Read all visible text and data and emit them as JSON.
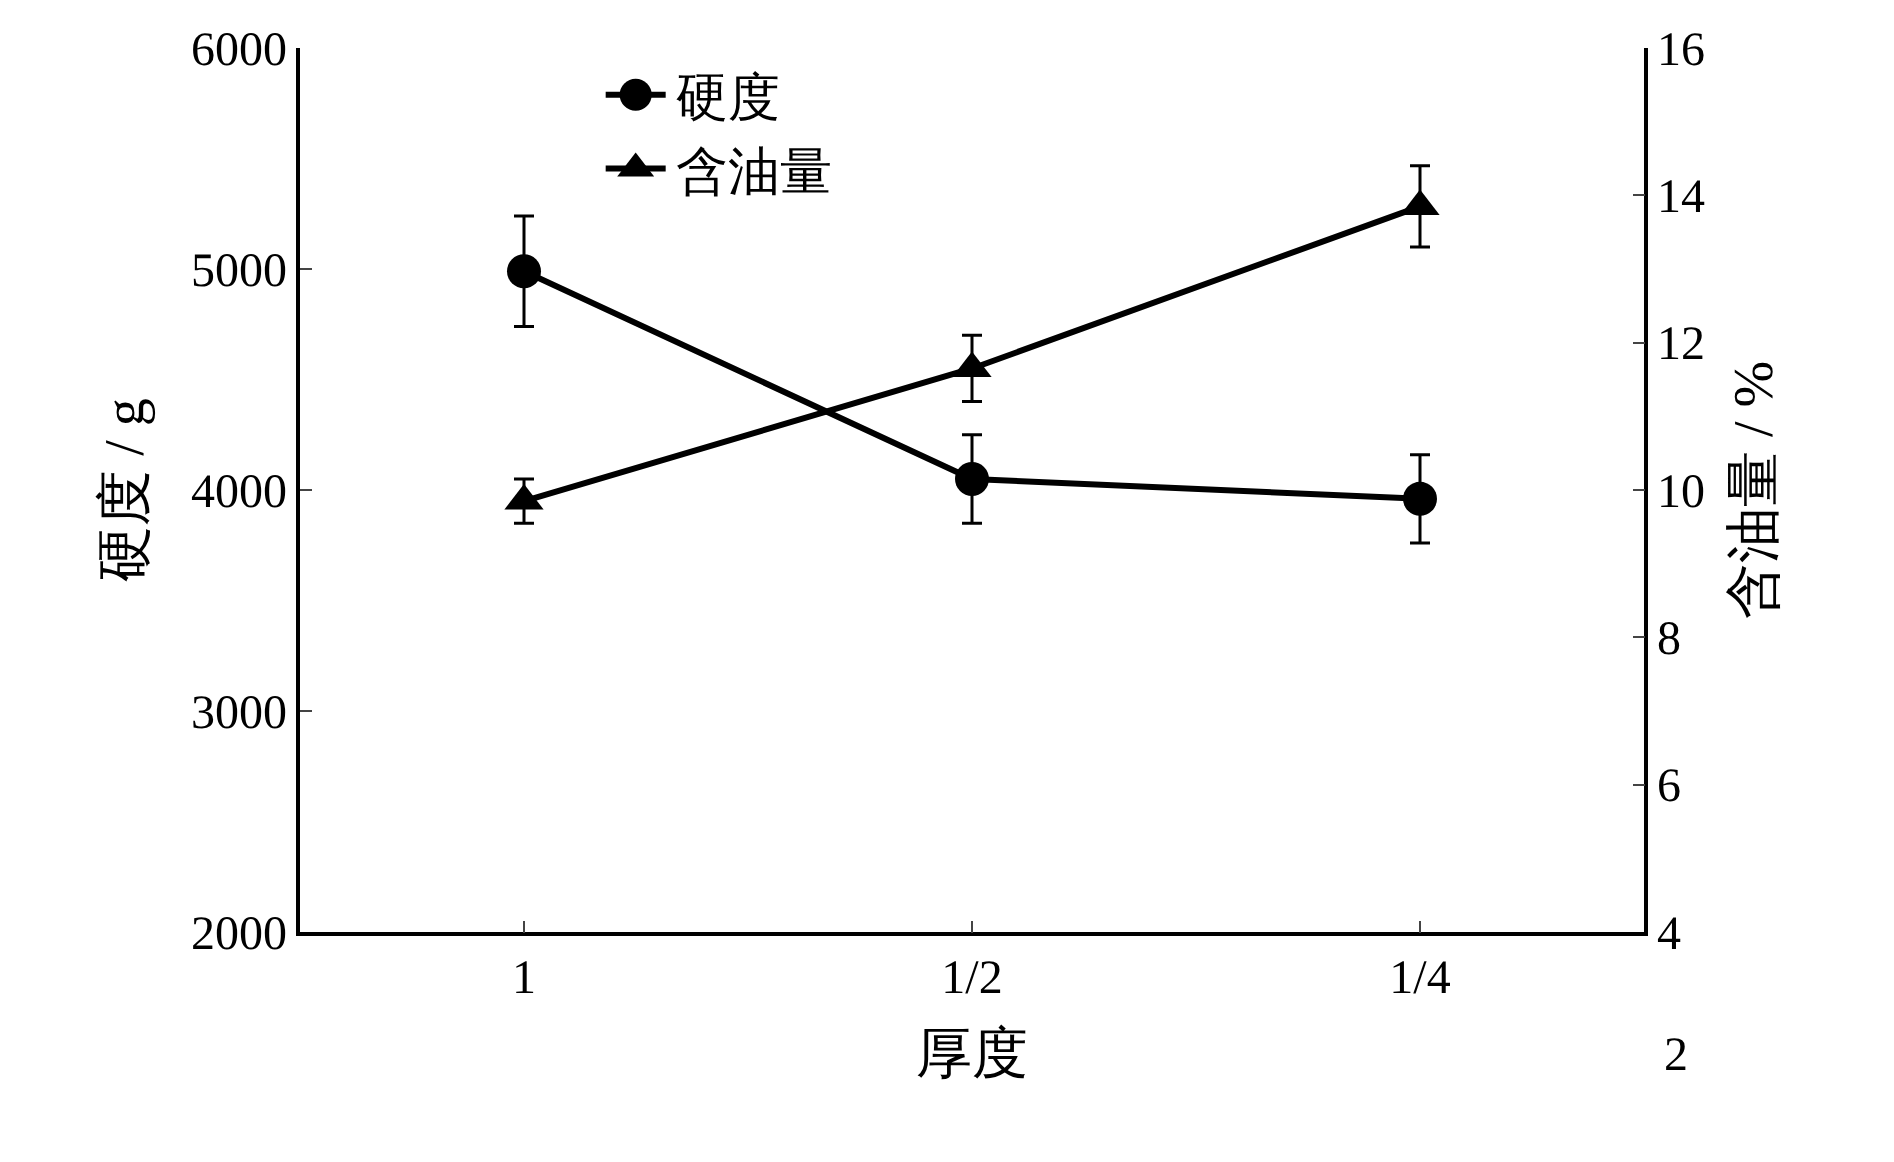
{
  "chart_data": {
    "type": "line",
    "xlabel": "厚度",
    "ylabel": "硬度 / g",
    "y2label": "含油量 / %",
    "categories": [
      "1",
      "1/2",
      "1/4"
    ],
    "series": [
      {
        "name": "硬度",
        "color": "#000000",
        "values": [
          4990,
          4050,
          3960
        ],
        "errors": [
          250,
          200,
          200
        ],
        "marker": "circle"
      },
      {
        "name": "含油量",
        "color": "#000000",
        "values": [
          9.85,
          11.65,
          13.85
        ],
        "errors": [
          0.3,
          0.45,
          0.55
        ],
        "marker": "triangle",
        "axis": "y2"
      }
    ],
    "ylim": [
      2000,
      6000
    ],
    "yticks": [
      2000,
      3000,
      4000,
      5000,
      6000
    ],
    "y2lim": [
      4,
      16
    ],
    "y2ticks": [
      4,
      6,
      8,
      10,
      12,
      14,
      16
    ],
    "annotations": [
      "2"
    ],
    "legend": "top",
    "line_style": "solid"
  }
}
